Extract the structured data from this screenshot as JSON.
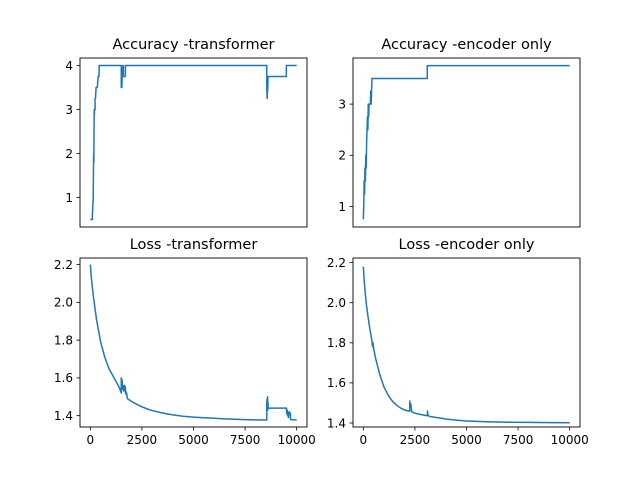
{
  "chart_data": [
    {
      "type": "line",
      "title": "Accuracy -transformer",
      "xlabel": "",
      "ylabel": "",
      "xlim": [
        -500,
        10500
      ],
      "ylim": [
        0.33,
        4.17
      ],
      "xticks": [],
      "xticklabels": [],
      "yticks": [
        1,
        2,
        3,
        4
      ],
      "yticklabels": [
        "1",
        "2",
        "3",
        "4"
      ],
      "grid": false,
      "legend": "none",
      "series": [
        {
          "color": "#1f77b4",
          "x": [
            0,
            100,
            100,
            140,
            150,
            160,
            170,
            180,
            190,
            200,
            210,
            230,
            230,
            250,
            280,
            300,
            340,
            380,
            400,
            420,
            430,
            450,
            480,
            500,
            1500,
            1500,
            1520,
            1530,
            1540,
            1560,
            1580,
            1600,
            1600,
            1700,
            1700,
            1760,
            1760,
            8550,
            8550,
            8570,
            8580,
            8590,
            8600,
            8610,
            8620,
            8620,
            9500,
            9500,
            10000
          ],
          "y": [
            0.5,
            0.5,
            0.6,
            1.0,
            1.5,
            2.0,
            1.8,
            2.6,
            3.0,
            2.9,
            3.0,
            3.0,
            3.25,
            3.25,
            3.5,
            3.5,
            3.5,
            3.75,
            3.75,
            3.75,
            4.0,
            4.0,
            4.0,
            4.0,
            4.0,
            3.5,
            3.6,
            3.5,
            3.75,
            3.75,
            4.0,
            4.0,
            3.75,
            3.75,
            4.0,
            4.0,
            4.0,
            4.0,
            3.5,
            3.25,
            3.6,
            3.4,
            3.5,
            3.75,
            3.75,
            3.75,
            3.75,
            4.0,
            4.0
          ]
        }
      ]
    },
    {
      "type": "line",
      "title": "Accuracy -encoder only",
      "xlabel": "",
      "ylabel": "",
      "xlim": [
        -500,
        10500
      ],
      "ylim": [
        0.6,
        3.9
      ],
      "xticks": [],
      "xticklabels": [],
      "yticks": [
        1,
        2,
        3
      ],
      "yticklabels": [
        "1",
        "2",
        "3"
      ],
      "grid": false,
      "legend": "none",
      "series": [
        {
          "color": "#1f77b4",
          "x": [
            0,
            20,
            40,
            60,
            80,
            100,
            120,
            140,
            160,
            180,
            200,
            220,
            240,
            260,
            280,
            300,
            320,
            340,
            360,
            380,
            400,
            420,
            440,
            460,
            500,
            3100,
            3100,
            10000
          ],
          "y": [
            0.75,
            1.0,
            1.5,
            1.25,
            1.75,
            1.5,
            2.0,
            1.75,
            2.25,
            2.5,
            2.75,
            2.5,
            3.0,
            2.75,
            3.0,
            3.0,
            3.0,
            3.0,
            3.25,
            3.0,
            3.25,
            3.5,
            3.5,
            3.5,
            3.5,
            3.5,
            3.75,
            3.75
          ]
        }
      ]
    },
    {
      "type": "line",
      "title": "Loss -transformer",
      "xlabel": "",
      "ylabel": "",
      "xlim": [
        -500,
        10500
      ],
      "ylim": [
        1.34,
        2.235
      ],
      "xticks": [
        0,
        2500,
        5000,
        7500,
        10000
      ],
      "xticklabels": [
        "0",
        "2500",
        "5000",
        "7500",
        "10000"
      ],
      "yticks": [
        1.4,
        1.6,
        1.8,
        2.0,
        2.2
      ],
      "yticklabels": [
        "1.4",
        "1.6",
        "1.8",
        "2.0",
        "2.2"
      ],
      "grid": false,
      "legend": "none",
      "series": [
        {
          "color": "#1f77b4",
          "x": [
            0,
            50,
            100,
            150,
            200,
            300,
            400,
            500,
            600,
            700,
            800,
            900,
            1000,
            1100,
            1200,
            1300,
            1400,
            1500,
            1500,
            1520,
            1540,
            1560,
            1580,
            1600,
            1620,
            1650,
            1700,
            1700,
            1720,
            1740,
            1760,
            1780,
            1800,
            2000,
            2250,
            2500,
            2750,
            3000,
            3500,
            4000,
            4500,
            5000,
            5500,
            6000,
            6500,
            7000,
            7500,
            8000,
            8500,
            8550,
            8550,
            8570,
            8580,
            8590,
            8600,
            8610,
            8620,
            8620,
            8650,
            9000,
            9500,
            9520,
            9540,
            9560,
            9580,
            9600,
            9650,
            9700,
            9700,
            9800,
            10000
          ],
          "y": [
            2.2,
            2.13,
            2.08,
            2.03,
            1.99,
            1.91,
            1.85,
            1.79,
            1.75,
            1.71,
            1.68,
            1.65,
            1.63,
            1.61,
            1.59,
            1.57,
            1.55,
            1.52,
            1.6,
            1.57,
            1.59,
            1.54,
            1.56,
            1.55,
            1.53,
            1.56,
            1.55,
            1.52,
            1.53,
            1.51,
            1.52,
            1.5,
            1.49,
            1.475,
            1.46,
            1.447,
            1.436,
            1.427,
            1.414,
            1.404,
            1.397,
            1.392,
            1.389,
            1.386,
            1.383,
            1.381,
            1.379,
            1.378,
            1.377,
            1.377,
            1.47,
            1.49,
            1.44,
            1.5,
            1.43,
            1.47,
            1.44,
            1.44,
            1.44,
            1.44,
            1.44,
            1.41,
            1.43,
            1.4,
            1.42,
            1.39,
            1.42,
            1.41,
            1.38,
            1.378,
            1.378
          ]
        }
      ]
    },
    {
      "type": "line",
      "title": "Loss -encoder only",
      "xlabel": "",
      "ylabel": "",
      "xlim": [
        -500,
        10500
      ],
      "ylim": [
        1.38,
        2.223
      ],
      "xticks": [
        0,
        2500,
        5000,
        7500,
        10000
      ],
      "xticklabels": [
        "0",
        "2500",
        "5000",
        "7500",
        "10000"
      ],
      "yticks": [
        1.4,
        1.6,
        1.8,
        2.0,
        2.2
      ],
      "yticklabels": [
        "1.4",
        "1.6",
        "1.8",
        "2.0",
        "2.2"
      ],
      "grid": false,
      "legend": "none",
      "series": [
        {
          "color": "#1f77b4",
          "x": [
            0,
            50,
            100,
            150,
            200,
            300,
            400,
            450,
            470,
            500,
            600,
            700,
            800,
            900,
            1000,
            1200,
            1400,
            1600,
            1800,
            2000,
            2200,
            2250,
            2250,
            2270,
            2300,
            2350,
            2500,
            2750,
            3000,
            3100,
            3110,
            3130,
            3200,
            3500,
            4000,
            4500,
            5000,
            5500,
            6000,
            7000,
            8000,
            9000,
            10000
          ],
          "y": [
            2.18,
            2.1,
            2.04,
            1.99,
            1.95,
            1.88,
            1.82,
            1.78,
            1.8,
            1.77,
            1.72,
            1.68,
            1.64,
            1.61,
            1.58,
            1.54,
            1.51,
            1.49,
            1.475,
            1.465,
            1.46,
            1.458,
            1.51,
            1.49,
            1.495,
            1.455,
            1.449,
            1.443,
            1.438,
            1.436,
            1.46,
            1.44,
            1.433,
            1.428,
            1.42,
            1.414,
            1.41,
            1.408,
            1.406,
            1.404,
            1.403,
            1.402,
            1.401
          ]
        }
      ]
    }
  ]
}
